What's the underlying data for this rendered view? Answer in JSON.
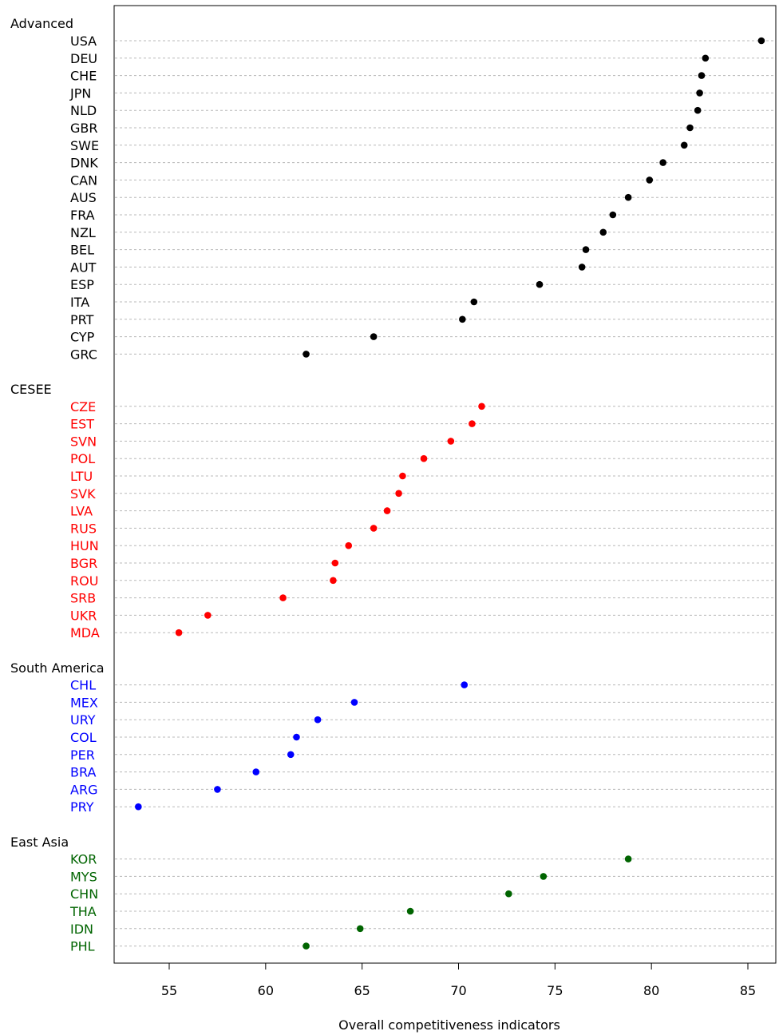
{
  "chart_data": {
    "type": "scatter",
    "subtype": "grouped dot plot",
    "xlabel": "Overall competitiveness indicators",
    "xlim": [
      52.8,
      86.2
    ],
    "xticks": [
      55,
      60,
      65,
      70,
      75,
      80,
      85
    ],
    "grid": "horizontal dotted",
    "groups": [
      {
        "name": "Advanced",
        "color": "#000000",
        "items": [
          {
            "label": "USA",
            "value": 85.7
          },
          {
            "label": "DEU",
            "value": 82.8
          },
          {
            "label": "CHE",
            "value": 82.6
          },
          {
            "label": "JPN",
            "value": 82.5
          },
          {
            "label": "NLD",
            "value": 82.4
          },
          {
            "label": "GBR",
            "value": 82.0
          },
          {
            "label": "SWE",
            "value": 81.7
          },
          {
            "label": "DNK",
            "value": 80.6
          },
          {
            "label": "CAN",
            "value": 79.9
          },
          {
            "label": "AUS",
            "value": 78.8
          },
          {
            "label": "FRA",
            "value": 78.0
          },
          {
            "label": "NZL",
            "value": 77.5
          },
          {
            "label": "BEL",
            "value": 76.6
          },
          {
            "label": "AUT",
            "value": 76.4
          },
          {
            "label": "ESP",
            "value": 74.2
          },
          {
            "label": "ITA",
            "value": 70.8
          },
          {
            "label": "PRT",
            "value": 70.2
          },
          {
            "label": "CYP",
            "value": 65.6
          },
          {
            "label": "GRC",
            "value": 62.1
          }
        ]
      },
      {
        "name": "CESEE",
        "color": "#ff0000",
        "items": [
          {
            "label": "CZE",
            "value": 71.2
          },
          {
            "label": "EST",
            "value": 70.7
          },
          {
            "label": "SVN",
            "value": 69.6
          },
          {
            "label": "POL",
            "value": 68.2
          },
          {
            "label": "LTU",
            "value": 67.1
          },
          {
            "label": "SVK",
            "value": 66.9
          },
          {
            "label": "LVA",
            "value": 66.3
          },
          {
            "label": "RUS",
            "value": 65.6
          },
          {
            "label": "HUN",
            "value": 64.3
          },
          {
            "label": "BGR",
            "value": 63.6
          },
          {
            "label": "ROU",
            "value": 63.5
          },
          {
            "label": "SRB",
            "value": 60.9
          },
          {
            "label": "UKR",
            "value": 57.0
          },
          {
            "label": "MDA",
            "value": 55.5
          }
        ]
      },
      {
        "name": "South America",
        "color": "#0000ff",
        "items": [
          {
            "label": "CHL",
            "value": 70.3
          },
          {
            "label": "MEX",
            "value": 64.6
          },
          {
            "label": "URY",
            "value": 62.7
          },
          {
            "label": "COL",
            "value": 61.6
          },
          {
            "label": "PER",
            "value": 61.3
          },
          {
            "label": "BRA",
            "value": 59.5
          },
          {
            "label": "ARG",
            "value": 57.5
          },
          {
            "label": "PRY",
            "value": 53.4
          }
        ]
      },
      {
        "name": "East Asia",
        "color": "#006400",
        "items": [
          {
            "label": "KOR",
            "value": 78.8
          },
          {
            "label": "MYS",
            "value": 74.4
          },
          {
            "label": "CHN",
            "value": 72.6
          },
          {
            "label": "THA",
            "value": 67.5
          },
          {
            "label": "IDN",
            "value": 64.9
          },
          {
            "label": "PHL",
            "value": 62.1
          }
        ]
      }
    ]
  }
}
